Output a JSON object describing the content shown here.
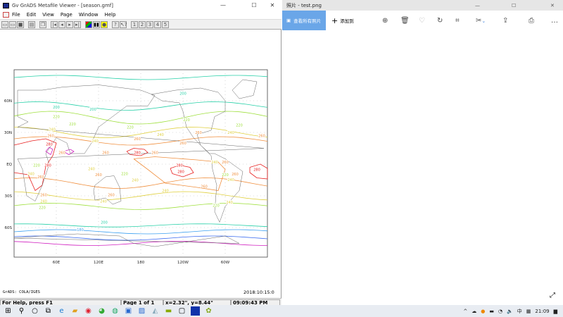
{
  "left_window": {
    "title": "Gv GrADS Metafile Viewer - [season.gmf]",
    "menu": [
      "File",
      "Edit",
      "View",
      "Page",
      "Window",
      "Help"
    ],
    "page_buttons": [
      "1",
      "2",
      "3",
      "4",
      "5"
    ],
    "status": {
      "help": "For Help, press F1",
      "page": "Page 1 of 1",
      "coords": "x=2.32\", y=8.44\"",
      "time": "09:09:43 PM"
    },
    "footer_left": "GrADS: COLA/IGES",
    "footer_right": "2018:10:15:0"
  },
  "map": {
    "lon_labels": [
      {
        "lon": 60,
        "text": "60E"
      },
      {
        "lon": 120,
        "text": "120E"
      },
      {
        "lon": 180,
        "text": "180"
      },
      {
        "lon": 240,
        "text": "120W"
      },
      {
        "lon": 300,
        "text": "60W"
      }
    ],
    "lat_labels": [
      {
        "lat": 60,
        "text": "60N"
      },
      {
        "lat": 30,
        "text": "30N"
      },
      {
        "lat": 0,
        "text": "EQ"
      },
      {
        "lat": -30,
        "text": "30S"
      },
      {
        "lat": -60,
        "text": "60S"
      }
    ],
    "level_colors": {
      "160": "#3c6cf0",
      "180": "#3ca0f0",
      "200": "#28d0a8",
      "220": "#a0e040",
      "240": "#e0d040",
      "260": "#f09040",
      "280": "#e82020",
      "300": "#d020c0"
    },
    "contour_labels": [
      {
        "lon": 60,
        "lat": 54,
        "v": "200"
      },
      {
        "lon": 112,
        "lat": 52,
        "v": "200"
      },
      {
        "lon": 240,
        "lat": 67,
        "v": "200"
      },
      {
        "lon": 60,
        "lat": 45,
        "v": "220"
      },
      {
        "lon": 83,
        "lat": 38,
        "v": "220"
      },
      {
        "lon": 165,
        "lat": 35,
        "v": "220"
      },
      {
        "lon": 245,
        "lat": 42,
        "v": "220"
      },
      {
        "lon": 320,
        "lat": 37,
        "v": "220"
      },
      {
        "lon": 54,
        "lat": 33,
        "v": "240"
      },
      {
        "lon": 115,
        "lat": 22,
        "v": "240"
      },
      {
        "lon": 208,
        "lat": 28,
        "v": "240"
      },
      {
        "lon": 308,
        "lat": 30,
        "v": "240"
      },
      {
        "lon": 52,
        "lat": 27,
        "v": "260"
      },
      {
        "lon": 175,
        "lat": 24,
        "v": "260"
      },
      {
        "lon": 240,
        "lat": 20,
        "v": "260"
      },
      {
        "lon": 262,
        "lat": 30,
        "v": "260"
      },
      {
        "lon": 352,
        "lat": 27,
        "v": "260"
      },
      {
        "lon": 50,
        "lat": 19,
        "v": "280"
      },
      {
        "lon": 68,
        "lat": 11,
        "v": "260"
      },
      {
        "lon": 130,
        "lat": 11,
        "v": "260"
      },
      {
        "lon": 175,
        "lat": 11,
        "v": "280"
      },
      {
        "lon": 200,
        "lat": 11,
        "v": "260"
      },
      {
        "lon": 235,
        "lat": -1,
        "v": "280"
      },
      {
        "lon": 237,
        "lat": -7,
        "v": "280"
      },
      {
        "lon": 48,
        "lat": -1,
        "v": "280"
      },
      {
        "lon": 32,
        "lat": -1,
        "v": "220"
      },
      {
        "lon": 24,
        "lat": -9,
        "v": "240"
      },
      {
        "lon": 38,
        "lat": -12,
        "v": "260"
      },
      {
        "lon": 120,
        "lat": -10,
        "v": "260"
      },
      {
        "lon": 110,
        "lat": -9,
        "v": "240"
      },
      {
        "lon": 157,
        "lat": -9,
        "v": "220"
      },
      {
        "lon": 172,
        "lat": -15,
        "v": "240"
      },
      {
        "lon": 270,
        "lat": -21,
        "v": "260"
      },
      {
        "lon": 285,
        "lat": 2,
        "v": "240"
      },
      {
        "lon": 300,
        "lat": 2,
        "v": "260"
      },
      {
        "lon": 300,
        "lat": -10,
        "v": "220"
      },
      {
        "lon": 308,
        "lat": -10,
        "v": "240"
      },
      {
        "lon": 314,
        "lat": -14,
        "v": "260"
      },
      {
        "lon": 345,
        "lat": -5,
        "v": "280"
      },
      {
        "lon": 42,
        "lat": -29,
        "v": "260"
      },
      {
        "lon": 42,
        "lat": -35,
        "v": "240"
      },
      {
        "lon": 40,
        "lat": -41,
        "v": "220"
      },
      {
        "lon": 138,
        "lat": -29,
        "v": "260"
      },
      {
        "lon": 127,
        "lat": -35,
        "v": "240"
      },
      {
        "lon": 215,
        "lat": -25,
        "v": "240"
      },
      {
        "lon": 287,
        "lat": -39,
        "v": "220"
      },
      {
        "lon": 306,
        "lat": -36,
        "v": "240"
      },
      {
        "lon": 128,
        "lat": -55,
        "v": "200"
      },
      {
        "lon": 94,
        "lat": -62,
        "v": "180"
      }
    ]
  },
  "right_window": {
    "title": "照片 - test.png",
    "view_all": "查看所有照片",
    "add_to": "添加到"
  },
  "taskbar": {
    "ime": "中",
    "clock": "21:09"
  }
}
